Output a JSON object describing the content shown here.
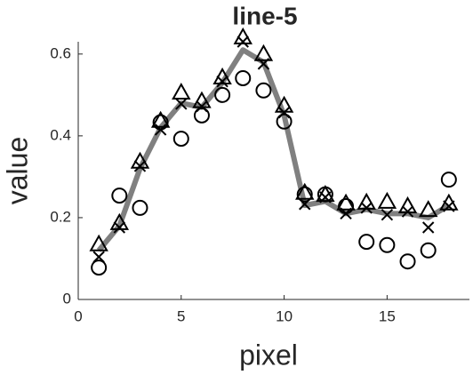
{
  "chart_data": {
    "type": "line",
    "title": "line-5",
    "xlabel": "pixel",
    "ylabel": "value",
    "x": [
      1,
      2,
      3,
      4,
      5,
      6,
      7,
      8,
      9,
      10,
      11,
      12,
      13,
      14,
      15,
      16,
      17,
      18
    ],
    "series": [
      {
        "color": "#808080",
        "marker": "none",
        "values": [
          0.12,
          0.18,
          0.32,
          0.42,
          0.48,
          0.47,
          0.53,
          0.61,
          0.58,
          0.45,
          0.23,
          0.24,
          0.21,
          0.22,
          0.21,
          0.21,
          0.2,
          0.23
        ]
      },
      {
        "color": "#000000",
        "marker": "circle",
        "values": [
          0.078,
          0.254,
          0.224,
          0.433,
          0.393,
          0.45,
          0.5,
          0.541,
          0.511,
          0.435,
          0.257,
          0.257,
          0.228,
          0.141,
          0.133,
          0.093,
          0.12,
          0.293
        ]
      },
      {
        "color": "#000000",
        "marker": "cross",
        "values": [
          0.104,
          0.176,
          0.326,
          0.415,
          0.478,
          0.472,
          0.533,
          0.63,
          0.576,
          0.457,
          0.233,
          0.25,
          0.21,
          0.224,
          0.207,
          0.215,
          0.176,
          0.228
        ]
      },
      {
        "color": "#000000",
        "marker": "triangle",
        "values": [
          0.133,
          0.185,
          0.335,
          0.435,
          0.504,
          0.483,
          0.541,
          0.639,
          0.598,
          0.472,
          0.259,
          0.254,
          0.233,
          0.235,
          0.237,
          0.226,
          0.217,
          0.233
        ]
      }
    ],
    "xlim": [
      0,
      19
    ],
    "xticks": [
      0,
      5,
      10,
      15
    ],
    "ylim": [
      0,
      0.63
    ],
    "yticks": [
      0,
      0.2,
      0.4,
      0.6
    ],
    "grid": false
  }
}
